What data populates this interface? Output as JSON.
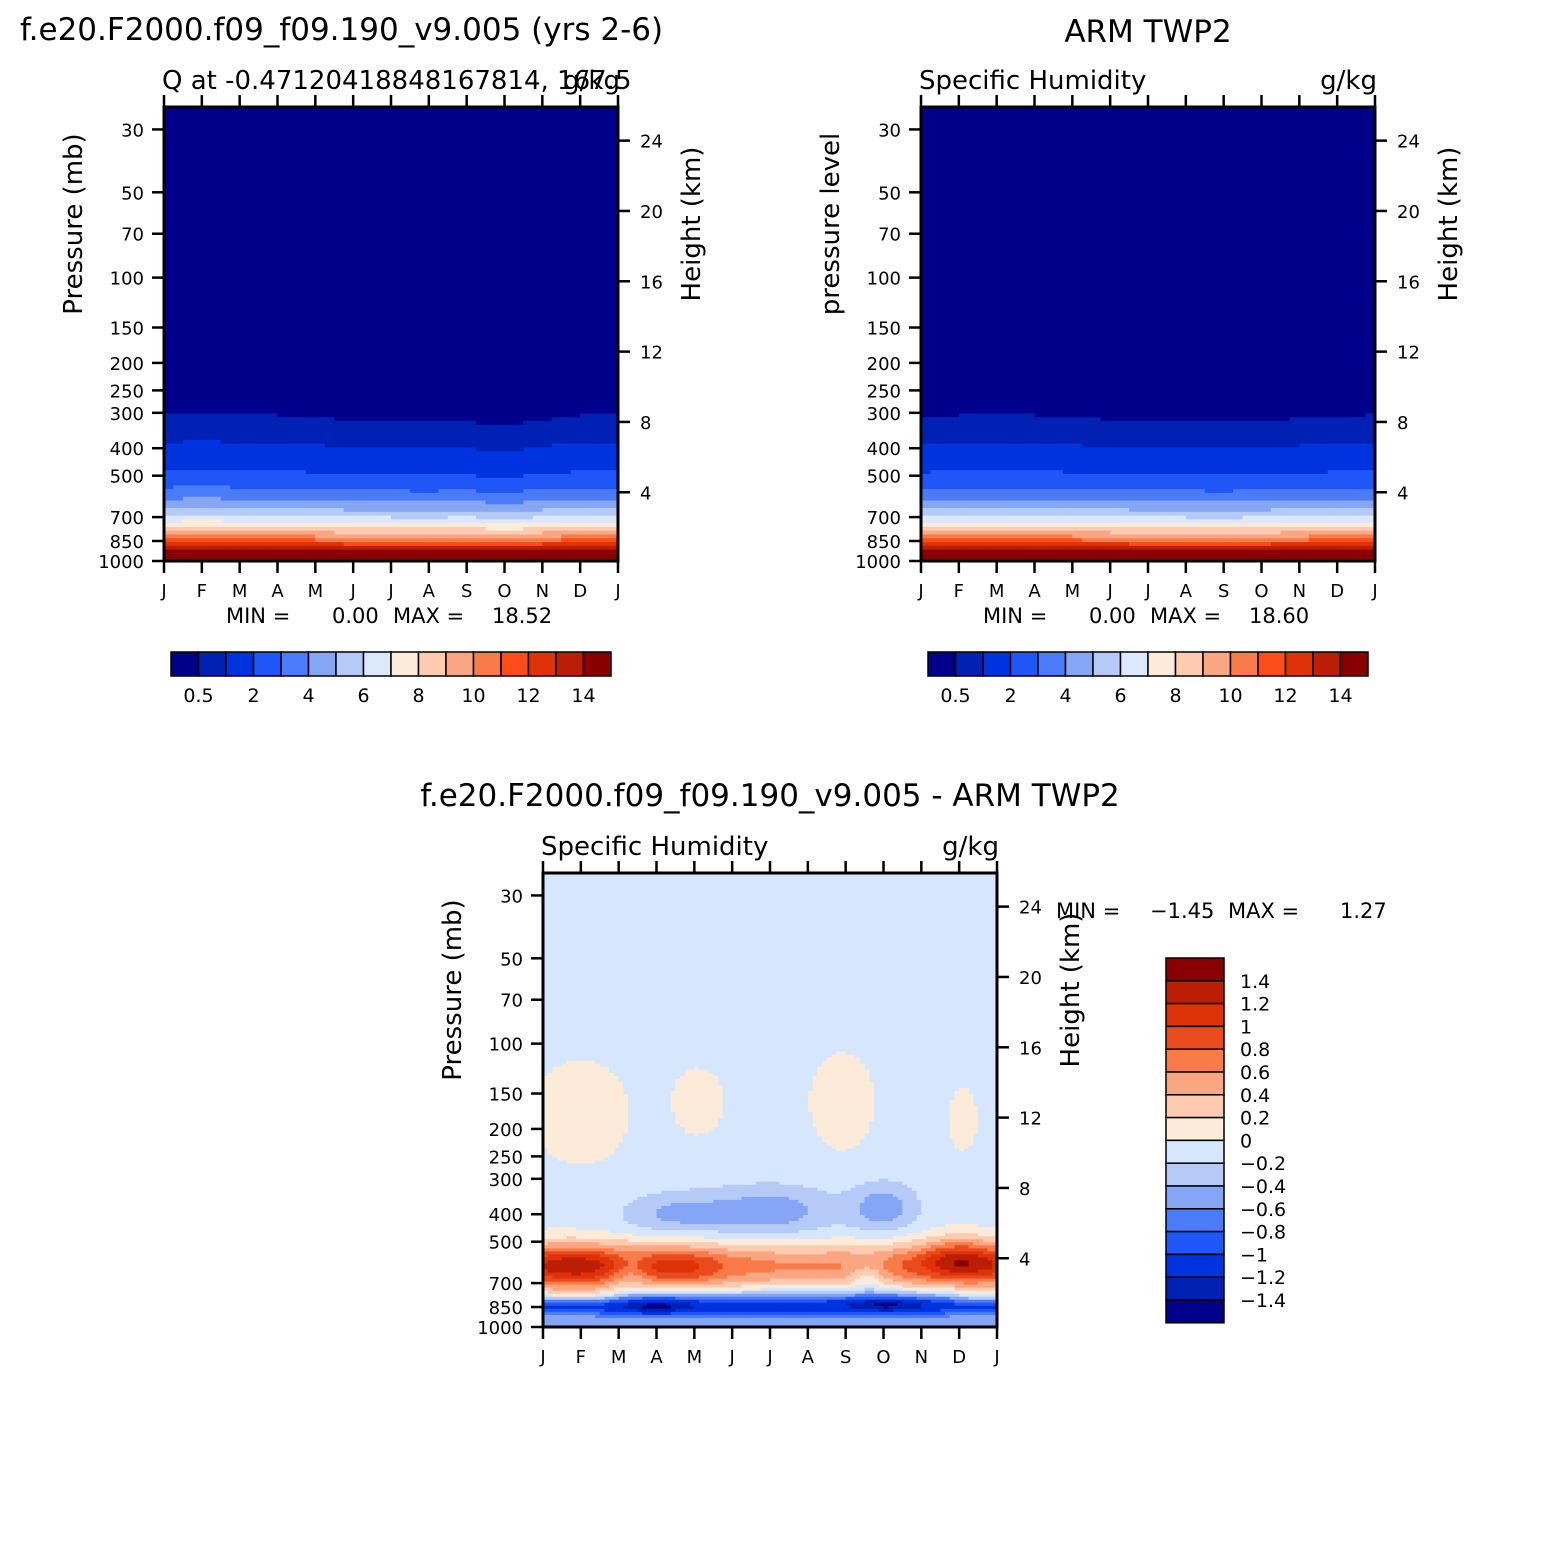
{
  "figure": {
    "titles": {
      "model": "f.e20.F2000.f09_f09.190_v9.005 (yrs 2-6)",
      "obs": "ARM TWP2",
      "diff": "f.e20.F2000.f09_f09.190_v9.005 - ARM TWP2"
    }
  },
  "months": [
    "J",
    "F",
    "M",
    "A",
    "M",
    "J",
    "J",
    "A",
    "S",
    "O",
    "N",
    "D",
    "J"
  ],
  "pressure_ticks": [
    "30",
    "50",
    "70",
    "100",
    "150",
    "200",
    "250",
    "300",
    "400",
    "500",
    "700",
    "850",
    "1000"
  ],
  "height_ticks": [
    "24",
    "20",
    "16",
    "12",
    "8",
    "4"
  ],
  "colors": {
    "humidity_scale": [
      "#00008b",
      "#0021b4",
      "#0033e0",
      "#1e56f8",
      "#4a7bf8",
      "#85a6f5",
      "#b5caf7",
      "#dce9fd",
      "#fdebd9",
      "#fccbb0",
      "#fba682",
      "#fa7b4a",
      "#fb4c1a",
      "#e03208",
      "#bc1e05",
      "#8a0000"
    ],
    "diff_scale": [
      "#00008b",
      "#0021b4",
      "#0033e0",
      "#1e56f8",
      "#4a7bf8",
      "#85a6f5",
      "#b5caf7",
      "#d5e6fd",
      "#fdebd9",
      "#fccbb0",
      "#fba682",
      "#fa7b4a",
      "#e94b1c",
      "#e03208",
      "#bc1e05",
      "#8a0000"
    ]
  },
  "chart_data": [
    {
      "type": "heatmap",
      "name": "model",
      "subtitle_left": "Q at -0.47120418848167814, 167.5",
      "subtitle_right": "g/kg",
      "ylabel_left": "Pressure (mb)",
      "ylabel_right": "Height (km)",
      "xlabel": "",
      "x": [
        "J",
        "F",
        "M",
        "A",
        "M",
        "J",
        "J",
        "A",
        "S",
        "O",
        "N",
        "D",
        "J"
      ],
      "y_pressure_range": [
        1000,
        25
      ],
      "contour_levels": [
        0.5,
        1,
        2,
        3,
        4,
        5,
        6,
        7,
        8,
        9,
        10,
        11,
        12,
        13,
        14
      ],
      "colorbar_ticks": [
        "0.5",
        "2",
        "4",
        "6",
        "8",
        "10",
        "12",
        "14"
      ],
      "min": "0.00",
      "max": "18.52",
      "min_label": "MIN =",
      "max_label": "MAX ="
    },
    {
      "type": "heatmap",
      "name": "obs",
      "subtitle_left": "Specific Humidity",
      "subtitle_right": "g/kg",
      "ylabel_left": "pressure level",
      "ylabel_right": "Height (km)",
      "xlabel": "",
      "x": [
        "J",
        "F",
        "M",
        "A",
        "M",
        "J",
        "J",
        "A",
        "S",
        "O",
        "N",
        "D",
        "J"
      ],
      "y_pressure_range": [
        1000,
        25
      ],
      "contour_levels": [
        0.5,
        1,
        2,
        3,
        4,
        5,
        6,
        7,
        8,
        9,
        10,
        11,
        12,
        13,
        14
      ],
      "colorbar_ticks": [
        "0.5",
        "2",
        "4",
        "6",
        "8",
        "10",
        "12",
        "14"
      ],
      "min": "0.00",
      "max": "18.60",
      "min_label": "MIN =",
      "max_label": "MAX ="
    },
    {
      "type": "heatmap",
      "name": "difference",
      "subtitle_left": "Specific Humidity",
      "subtitle_right": "g/kg",
      "ylabel_left": "Pressure (mb)",
      "ylabel_right": "Height (km)",
      "xlabel": "",
      "x": [
        "J",
        "F",
        "M",
        "A",
        "M",
        "J",
        "J",
        "A",
        "S",
        "O",
        "N",
        "D",
        "J"
      ],
      "y_pressure_range": [
        1000,
        25
      ],
      "contour_levels": [
        -1.4,
        -1.2,
        -1,
        -0.8,
        -0.6,
        -0.4,
        -0.2,
        0,
        0.2,
        0.4,
        0.6,
        0.8,
        1,
        1.2,
        1.4
      ],
      "colorbar_ticks": [
        "1.4",
        "1.2",
        "1",
        "0.8",
        "0.6",
        "0.4",
        "0.2",
        "0",
        "-0.2",
        "-0.4",
        "-0.6",
        "-0.8",
        "-1",
        "-1.2",
        "-1.4"
      ],
      "min": "-1.45",
      "max": "1.27",
      "min_label": "MIN =",
      "max_label": "MAX ="
    }
  ]
}
